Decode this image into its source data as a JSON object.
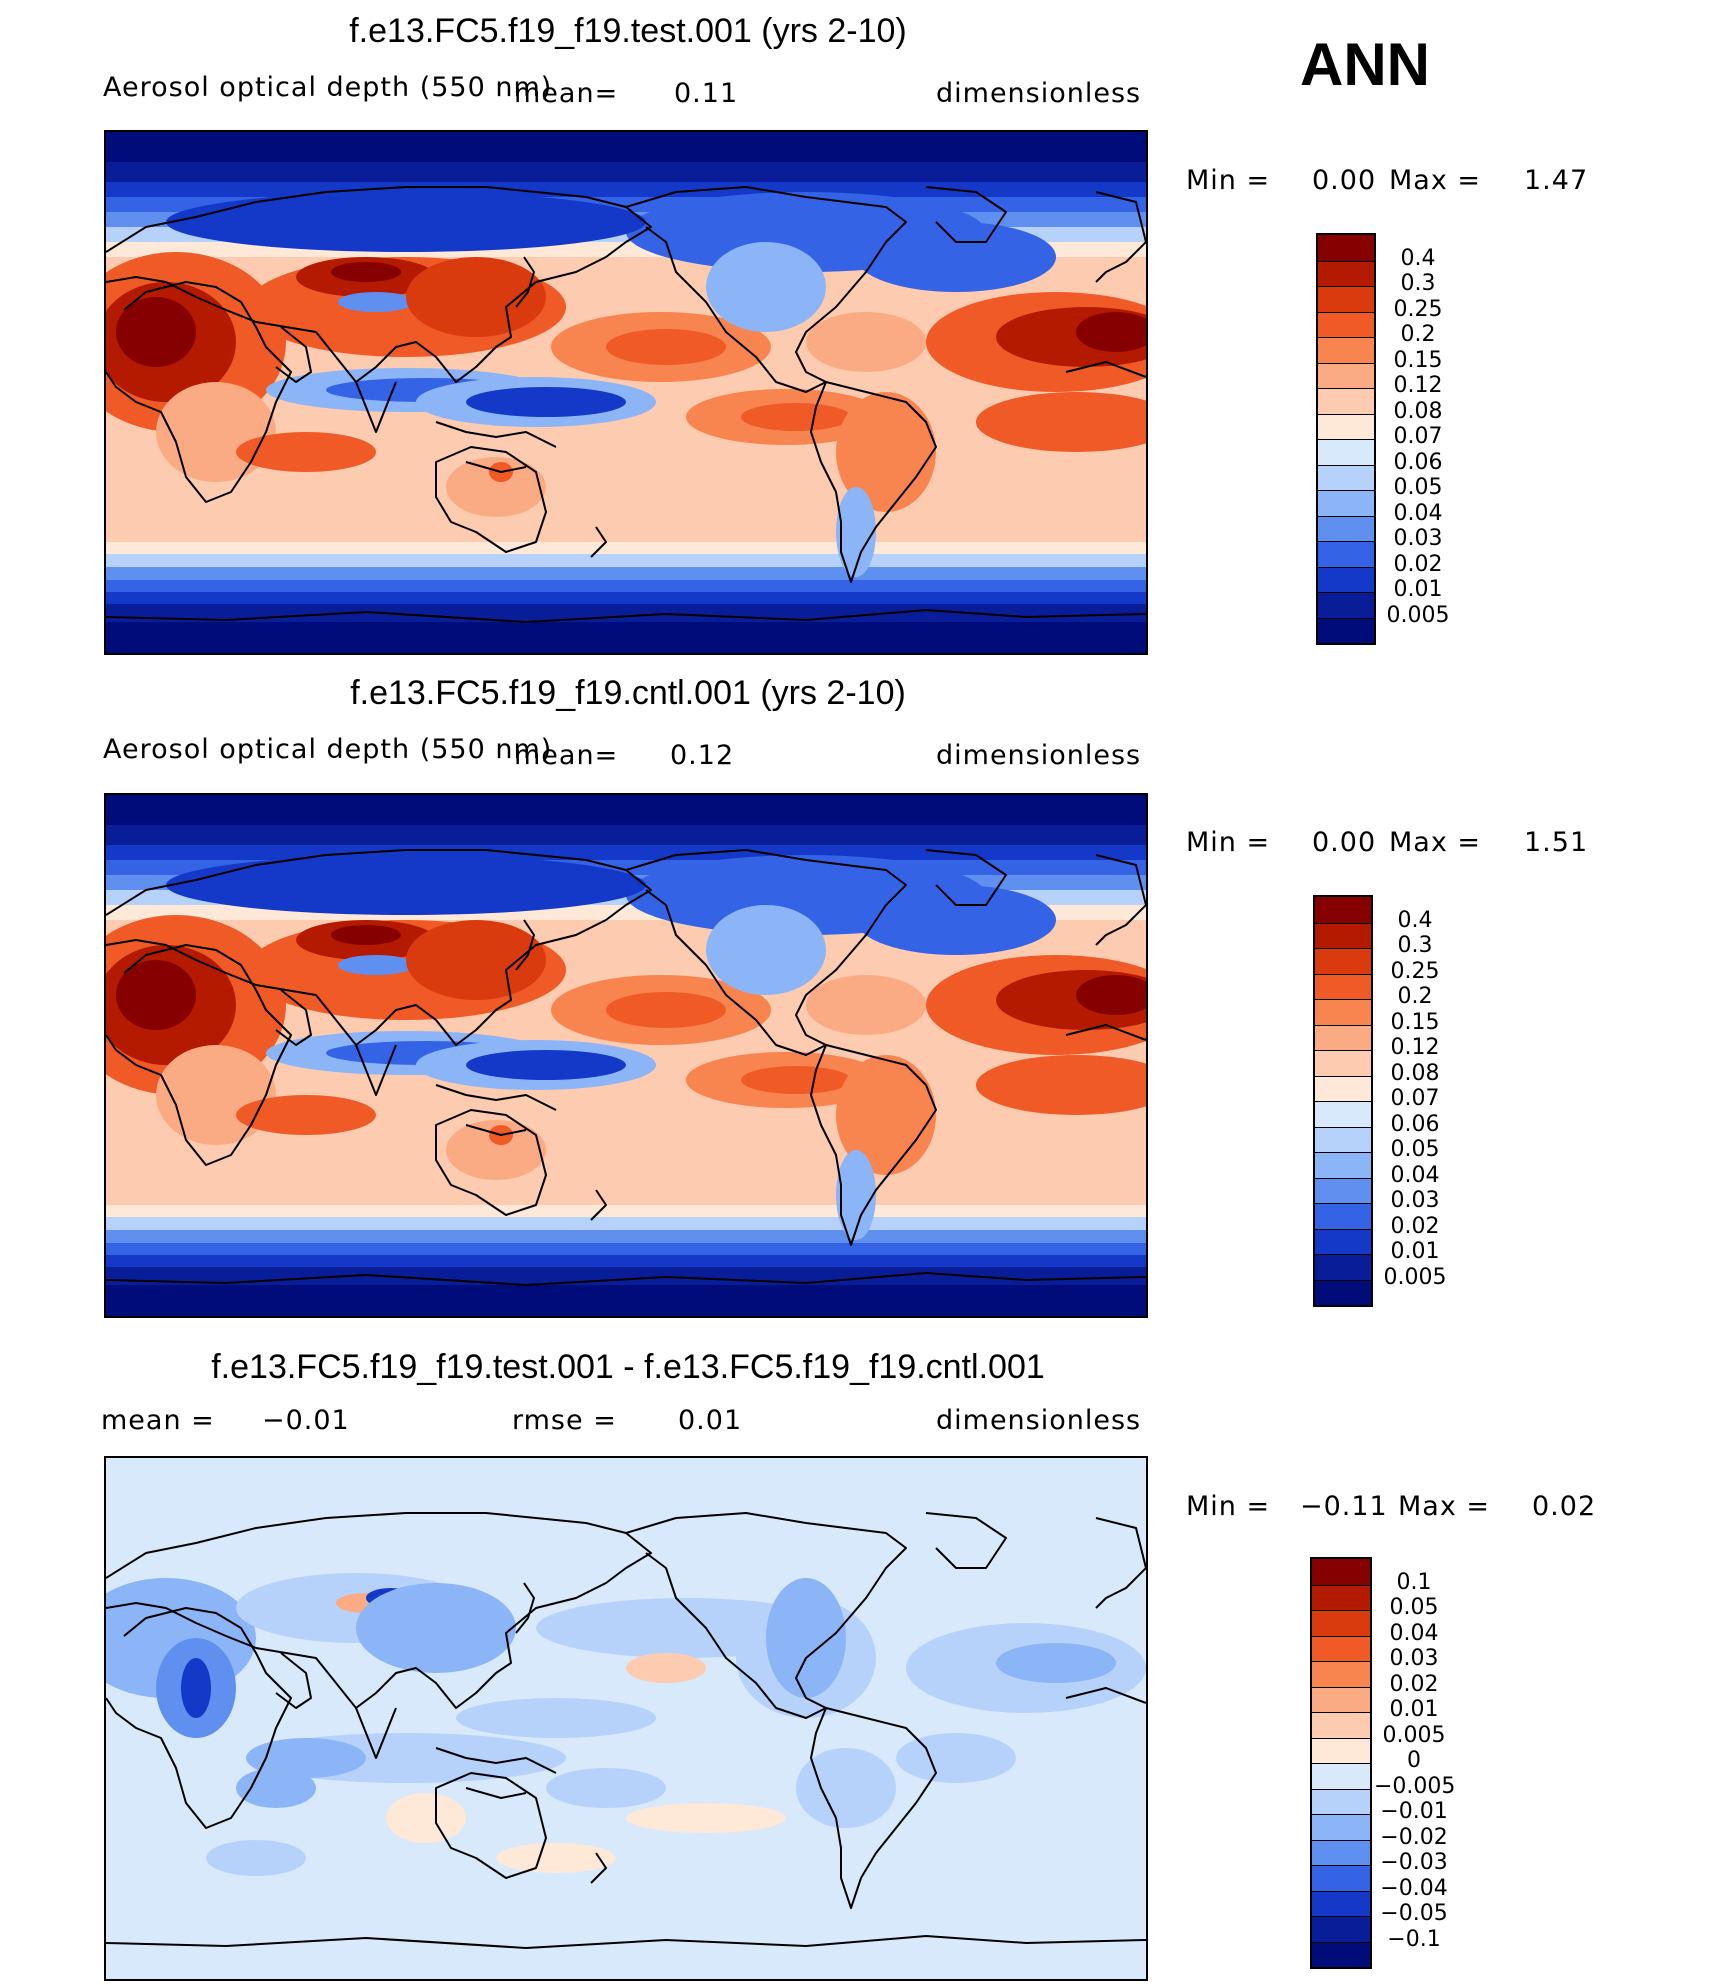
{
  "season": "ANN",
  "panels": [
    {
      "title": "f.e13.FC5.f19_f19.test.001 (yrs 2-10)",
      "left_label": "Aerosol optical depth (550 nm)",
      "mean_label": "mean=",
      "mean_value": "0.11",
      "units": "dimensionless",
      "min_label": "Min =",
      "min_value": "0.00",
      "max_label": "Max =",
      "max_value": "1.47",
      "levels": [
        "0.4",
        "0.3",
        "0.25",
        "0.2",
        "0.15",
        "0.12",
        "0.08",
        "0.07",
        "0.06",
        "0.05",
        "0.04",
        "0.03",
        "0.02",
        "0.01",
        "0.005"
      ],
      "colors": [
        "#870000",
        "#b31a00",
        "#d93a0e",
        "#f05a26",
        "#f8844f",
        "#fbab84",
        "#fdcbb0",
        "#fee8d8",
        "#d7e9fb",
        "#b6d2fa",
        "#8cb5f7",
        "#5f90f0",
        "#3463e6",
        "#1438c7",
        "#0a1d99",
        "#010c7b"
      ]
    },
    {
      "title": "f.e13.FC5.f19_f19.cntl.001 (yrs 2-10)",
      "left_label": "Aerosol optical depth (550 nm)",
      "mean_label": "mean=",
      "mean_value": "0.12",
      "units": "dimensionless",
      "min_label": "Min =",
      "min_value": "0.00",
      "max_label": "Max =",
      "max_value": "1.51",
      "levels": [
        "0.4",
        "0.3",
        "0.25",
        "0.2",
        "0.15",
        "0.12",
        "0.08",
        "0.07",
        "0.06",
        "0.05",
        "0.04",
        "0.03",
        "0.02",
        "0.01",
        "0.005"
      ],
      "colors": [
        "#870000",
        "#b31a00",
        "#d93a0e",
        "#f05a26",
        "#f8844f",
        "#fbab84",
        "#fdcbb0",
        "#fee8d8",
        "#d7e9fb",
        "#b6d2fa",
        "#8cb5f7",
        "#5f90f0",
        "#3463e6",
        "#1438c7",
        "#0a1d99",
        "#010c7b"
      ]
    },
    {
      "title": "f.e13.FC5.f19_f19.test.001 - f.e13.FC5.f19_f19.cntl.001",
      "mean_label": "mean =",
      "mean_value": "−0.01",
      "rmse_label": "rmse =",
      "rmse_value": "0.01",
      "units": "dimensionless",
      "min_label": "Min =",
      "min_value": "−0.11",
      "max_label": "Max =",
      "max_value": "0.02",
      "levels": [
        "0.1",
        "0.05",
        "0.04",
        "0.03",
        "0.02",
        "0.01",
        "0.005",
        "0",
        "−0.005",
        "−0.01",
        "−0.02",
        "−0.03",
        "−0.04",
        "−0.05",
        "−0.1"
      ],
      "colors": [
        "#870000",
        "#b31a00",
        "#d93a0e",
        "#f05a26",
        "#f8844f",
        "#fbab84",
        "#fdcbb0",
        "#fee8d8",
        "#d7e9fb",
        "#b6d2fa",
        "#8cb5f7",
        "#5f90f0",
        "#3463e6",
        "#1438c7",
        "#0a1d99",
        "#010c7b"
      ]
    }
  ]
}
